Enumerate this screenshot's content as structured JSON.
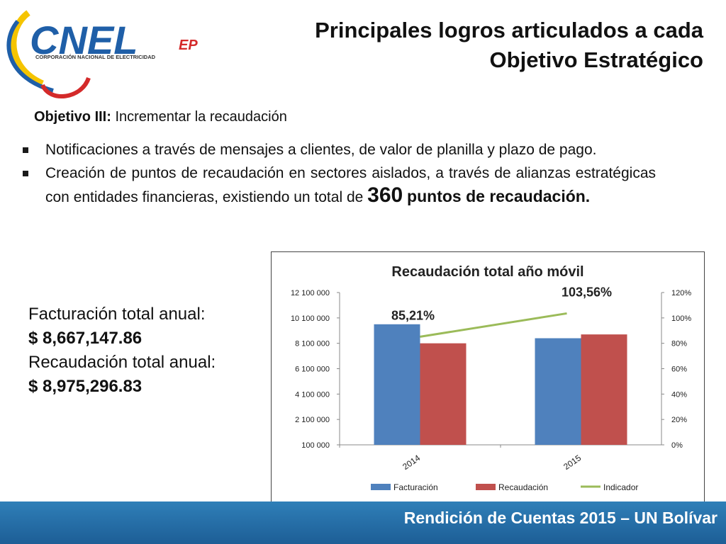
{
  "slide": {
    "title_line1": "Principales logros articulados a cada",
    "title_line2": "Objetivo Estratégico",
    "objective_label": "Objetivo III:",
    "objective_text": " Incrementar la recaudación",
    "bullet1": "Notificaciones a través de mensajes a clientes, de valor de planilla y plazo de pago.",
    "bullet2_text": "Creación de puntos de recaudación en sectores aislados, a través de alianzas estratégicas con entidades financieras, existiendo un total de ",
    "bullet2_number": "360",
    "bullet2_bold": "puntos de recaudación.",
    "billing_label": "Facturación total anual:",
    "billing_value": "$ 8,667,147.86",
    "collection_label": "Recaudación total anual:",
    "collection_value": "$ 8,975,296.83",
    "footer": "Rendición de Cuentas 2015 – UN Bolívar"
  },
  "logo": {
    "brand": "CNEL",
    "suffix": "EP",
    "subtitle": "CORPORACIÓN NACIONAL DE ELECTRICIDAD",
    "colors": [
      "#f5c400",
      "#1f5fa8",
      "#d42a2a"
    ]
  },
  "chart_data": {
    "type": "bar",
    "title": "Recaudación total año móvil",
    "categories": [
      "2014",
      "2015"
    ],
    "series": [
      {
        "name": "Facturación",
        "values": [
          9600000,
          8500000
        ],
        "color": "#4f81bd"
      },
      {
        "name": "Recaudación",
        "values": [
          8100000,
          8800000
        ],
        "color": "#c0504d"
      }
    ],
    "line_series": {
      "name": "Indicador",
      "values": [
        85.21,
        103.56
      ],
      "labels": [
        "85,21%",
        "103,56%"
      ],
      "color": "#9bbb59",
      "axis": "secondary"
    },
    "ylim": [
      100000,
      12100000
    ],
    "y_ticks": [
      "100 000",
      "2 100 000",
      "4 100 000",
      "6 100 000",
      "8 100 000",
      "10 100 000",
      "12 100 000"
    ],
    "y2lim": [
      0,
      120
    ],
    "y2_ticks": [
      "0%",
      "20%",
      "40%",
      "60%",
      "80%",
      "100%",
      "120%"
    ],
    "legend": "bottom"
  }
}
